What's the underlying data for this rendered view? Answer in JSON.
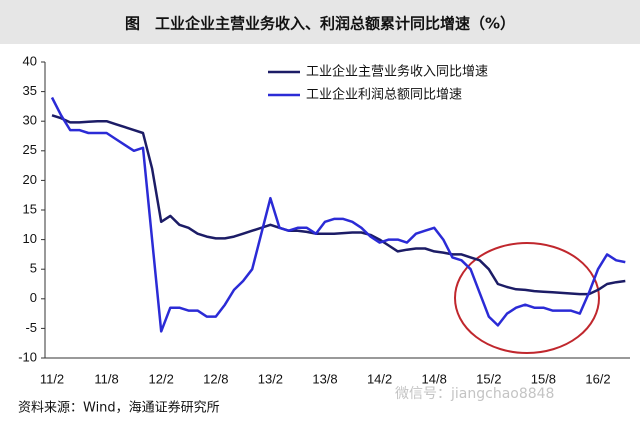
{
  "chart_data": {
    "type": "line",
    "title": "图　工业企业主营业务收入、利润总额累计同比增速（%）",
    "source": "资料来源：Wind，海通证券研究所",
    "watermark": "微信号：jiangchao8848",
    "categories": [
      "11/2",
      null,
      null,
      null,
      null,
      null,
      "11/8",
      null,
      null,
      null,
      null,
      null,
      "12/2",
      null,
      null,
      null,
      null,
      null,
      "12/8",
      null,
      null,
      null,
      null,
      null,
      "13/2",
      null,
      null,
      null,
      null,
      null,
      "13/8",
      null,
      null,
      null,
      null,
      null,
      "14/2",
      null,
      null,
      null,
      null,
      null,
      "14/8",
      null,
      null,
      null,
      null,
      null,
      "15/2",
      null,
      null,
      null,
      null,
      null,
      "15/8",
      null,
      null,
      null,
      null,
      null,
      "16/2",
      null,
      null,
      null
    ],
    "series": [
      {
        "name": "工业企业主营业务收入同比增速",
        "color": "#1c1c66",
        "values": [
          31,
          30.5,
          29.8,
          29.8,
          29.9,
          30,
          30,
          29.5,
          29,
          28.5,
          28,
          22,
          13,
          14,
          12.5,
          12,
          11,
          10.5,
          10.2,
          10.2,
          10.5,
          11,
          11.5,
          12,
          12.5,
          12,
          11.5,
          11.5,
          11.3,
          11,
          11,
          11,
          11.1,
          11.2,
          11.2,
          10.8,
          10,
          9,
          8,
          8.3,
          8.5,
          8.5,
          8,
          7.8,
          7.5,
          7.5,
          7,
          6.5,
          5,
          2.5,
          2,
          1.6,
          1.5,
          1.3,
          1.2,
          1.1,
          1,
          0.9,
          0.8,
          0.8,
          1.5,
          2.5,
          2.8,
          3
        ]
      },
      {
        "name": "工业企业利润总额同比增速",
        "color": "#2b2bd6",
        "values": [
          34,
          31,
          28.5,
          28.5,
          28,
          28,
          28,
          27,
          26,
          25,
          25.5,
          10,
          -5.5,
          -1.5,
          -1.5,
          -2,
          -2,
          -3,
          -3,
          -1,
          1.5,
          3,
          5,
          11,
          17,
          12,
          11.5,
          12,
          12,
          11,
          13,
          13.5,
          13.5,
          13,
          12,
          10.5,
          9.5,
          10,
          10,
          9.5,
          11,
          11.5,
          12,
          10,
          7,
          6.5,
          5,
          1,
          -3,
          -4.5,
          -2.5,
          -1.5,
          -1,
          -1.5,
          -1.5,
          -2,
          -2,
          -2,
          -2.5,
          1,
          5,
          7.5,
          6.5,
          6.2
        ]
      }
    ],
    "ylim": [
      -10,
      40
    ],
    "yticks": [
      -10,
      -5,
      0,
      5,
      10,
      15,
      20,
      25,
      30,
      35,
      40
    ],
    "grid": false,
    "legend": "top-right"
  }
}
